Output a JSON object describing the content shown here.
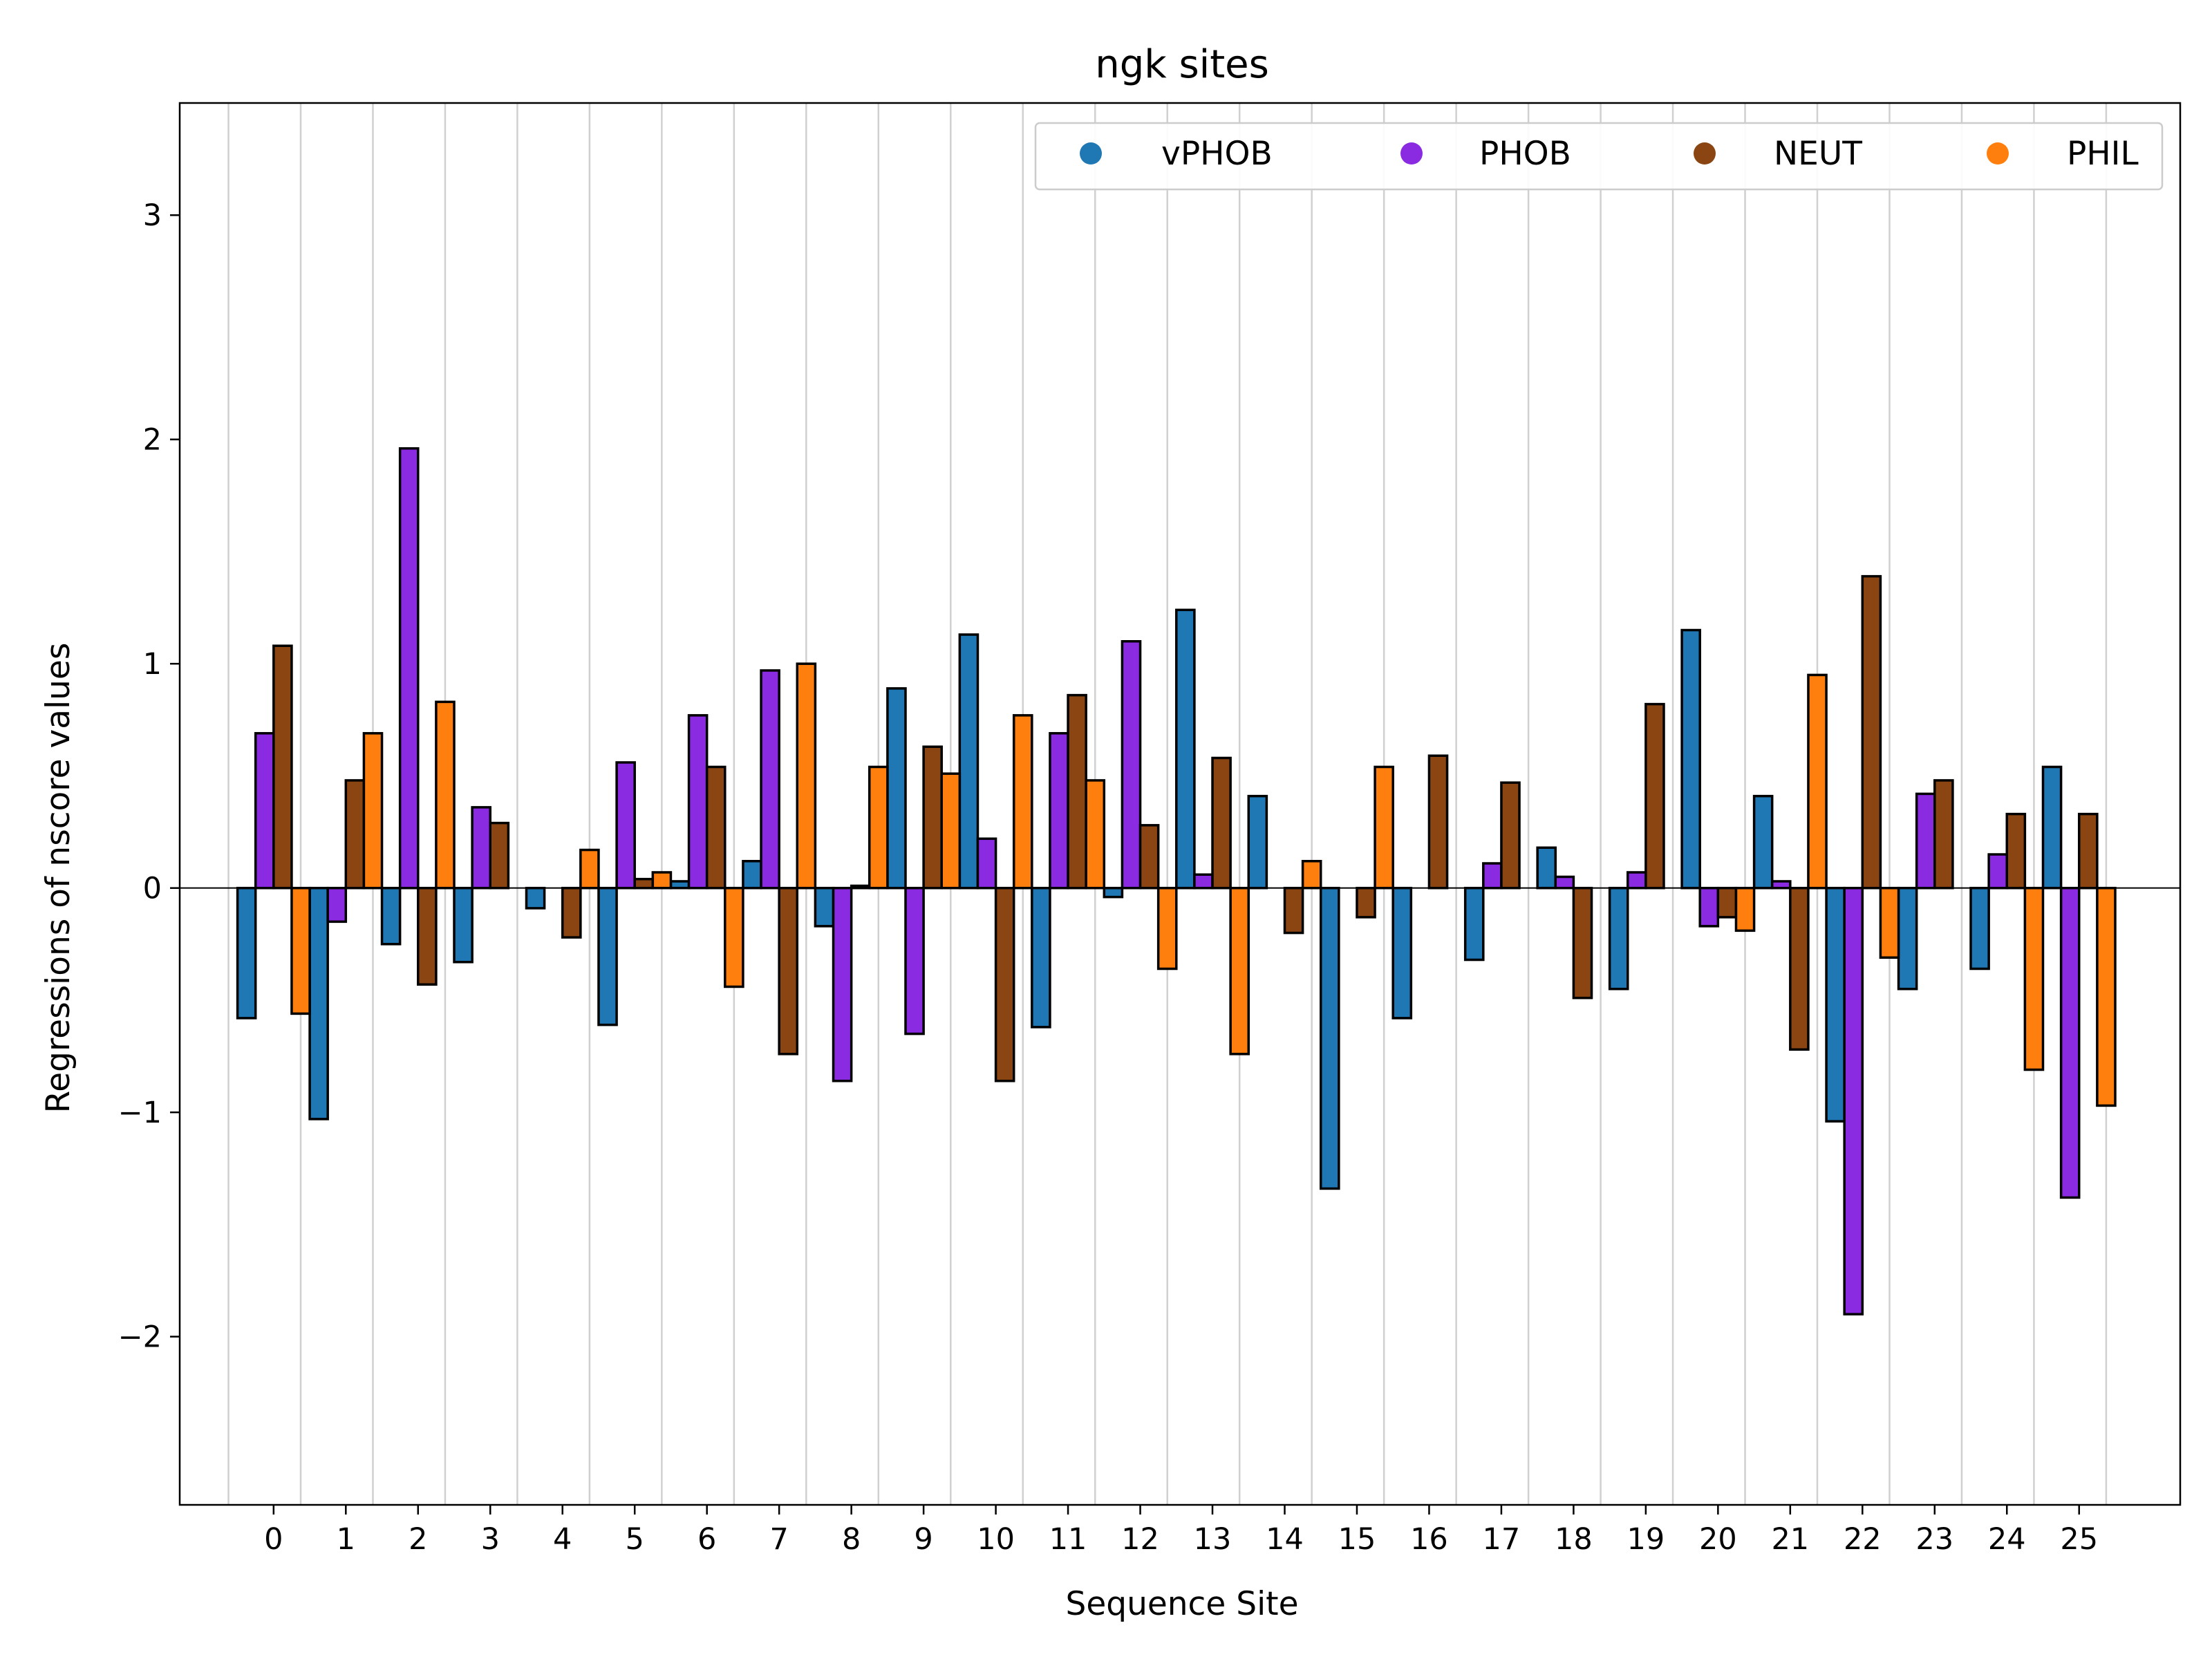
{
  "chart_data": {
    "type": "bar",
    "title": "ngk sites",
    "xlabel": "Sequence Site",
    "ylabel": "Regressions of nscore values",
    "categories": [
      "0",
      "1",
      "2",
      "3",
      "4",
      "5",
      "6",
      "7",
      "8",
      "9",
      "10",
      "11",
      "12",
      "13",
      "14",
      "15",
      "16",
      "17",
      "18",
      "19",
      "20",
      "21",
      "22",
      "23",
      "24",
      "25"
    ],
    "ylim": [
      -2.75,
      3.5
    ],
    "yticks": [
      -2,
      -1,
      0,
      1,
      2,
      3
    ],
    "ytick_labels": [
      "−2",
      "−1",
      "0",
      "1",
      "2",
      "3"
    ],
    "grid": "vertical lines at site boundaries",
    "legend": {
      "placement": "top-right",
      "columns": 4
    },
    "series": [
      {
        "name": "vPHOB",
        "color": "#1f77b4",
        "values": [
          -0.58,
          -1.03,
          -0.25,
          -0.33,
          -0.09,
          -0.61,
          0.03,
          0.12,
          -0.17,
          0.89,
          1.13,
          -0.62,
          -0.04,
          1.24,
          0.41,
          -1.34,
          -0.58,
          -0.32,
          0.18,
          -0.45,
          1.15,
          0.41,
          -1.04,
          -0.45,
          -0.36,
          0.54
        ]
      },
      {
        "name": "PHOB",
        "color": "#8a2be2",
        "values": [
          0.69,
          -0.15,
          1.96,
          0.36,
          0.0,
          0.56,
          0.77,
          0.97,
          -0.86,
          -0.65,
          0.22,
          0.69,
          1.1,
          0.06,
          0.0,
          0.0,
          0.0,
          0.11,
          0.05,
          0.07,
          -0.17,
          0.03,
          -1.9,
          0.42,
          0.15,
          -1.38
        ]
      },
      {
        "name": "NEUT",
        "color": "#8b4513",
        "values": [
          1.08,
          0.48,
          -0.43,
          0.29,
          -0.22,
          0.04,
          0.54,
          -0.74,
          0.01,
          0.63,
          -0.86,
          0.86,
          0.28,
          0.58,
          -0.2,
          -0.13,
          0.59,
          0.47,
          -0.49,
          0.82,
          -0.13,
          -0.72,
          1.39,
          0.48,
          0.33,
          0.33
        ]
      },
      {
        "name": "PHIL",
        "color": "#ff7f0e",
        "values": [
          -0.56,
          0.69,
          0.83,
          0.0,
          0.17,
          0.07,
          -0.44,
          1.0,
          0.54,
          0.51,
          0.77,
          0.48,
          -0.36,
          -0.74,
          0.12,
          0.54,
          0.0,
          0.0,
          0.0,
          0.0,
          -0.19,
          0.95,
          -0.31,
          0.0,
          -0.81,
          -0.97
        ]
      }
    ]
  }
}
